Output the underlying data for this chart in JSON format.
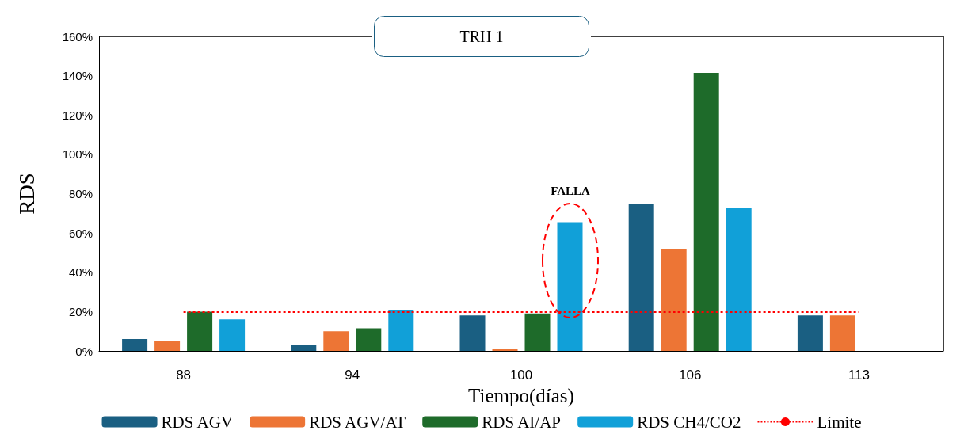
{
  "chart_data": {
    "type": "bar",
    "title": "TRH 1",
    "xlabel": "Tiempo(días)",
    "ylabel": "RDS",
    "categories": [
      "88",
      "94",
      "100",
      "106",
      "113"
    ],
    "series": [
      {
        "name": "RDS AGV",
        "color": "#1a5f82",
        "values": [
          6,
          3,
          18,
          75,
          18
        ]
      },
      {
        "name": "RDS AGV/AT",
        "color": "#ed7535",
        "values": [
          5,
          10,
          1,
          52,
          18
        ]
      },
      {
        "name": "RDS AI/AP",
        "color": "#1e6b2a",
        "values": [
          20,
          11.5,
          19,
          141.5,
          null
        ]
      },
      {
        "name": "RDS CH4/CO2",
        "color": "#11a0d8",
        "values": [
          16,
          21,
          65.5,
          72.5,
          null
        ]
      },
      {
        "name": "Límite",
        "type": "line",
        "color": "#ff0000",
        "line_style": "dotted",
        "marker": "none",
        "values": [
          20,
          20,
          20,
          20,
          20
        ]
      }
    ],
    "ylim": [
      0,
      160
    ],
    "yticks": [
      {
        "value": 0,
        "label": "0%"
      },
      {
        "value": 20,
        "label": "20%"
      },
      {
        "value": 40,
        "label": "40%"
      },
      {
        "value": 60,
        "label": "60%"
      },
      {
        "value": 80,
        "label": "80%"
      },
      {
        "value": 100,
        "label": "100%"
      },
      {
        "value": 120,
        "label": "120%"
      },
      {
        "value": 140,
        "label": "140%"
      },
      {
        "value": 160,
        "label": "160%"
      }
    ],
    "annotations": [
      "FALLA"
    ],
    "legend": "bottom"
  }
}
